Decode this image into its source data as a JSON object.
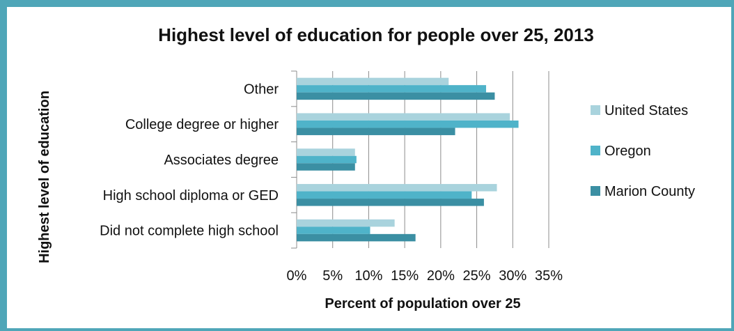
{
  "chart_data": {
    "type": "bar",
    "orientation": "horizontal",
    "title": "Highest level of education for people over 25, 2013",
    "xlabel": "Percent of population over 25",
    "ylabel": "Highest level of education",
    "categories": [
      "Did not complete high school",
      "High school diploma or GED",
      "Associates degree",
      "College degree or higher",
      "Other"
    ],
    "series": [
      {
        "name": "Marion County",
        "color": "#3b8fa3",
        "values": [
          16.5,
          26.0,
          8.1,
          22.0,
          27.5
        ]
      },
      {
        "name": "Oregon",
        "color": "#4fb3c9",
        "values": [
          10.2,
          24.3,
          8.3,
          30.8,
          26.3
        ]
      },
      {
        "name": "United States",
        "color": "#a9d3dd",
        "values": [
          13.6,
          27.8,
          8.1,
          29.6,
          21.1
        ]
      }
    ],
    "xlim": [
      0,
      35
    ],
    "xticks": [
      "0%",
      "5%",
      "10%",
      "15%",
      "20%",
      "25%",
      "30%",
      "35%"
    ],
    "grid": true,
    "legend_position": "right"
  }
}
